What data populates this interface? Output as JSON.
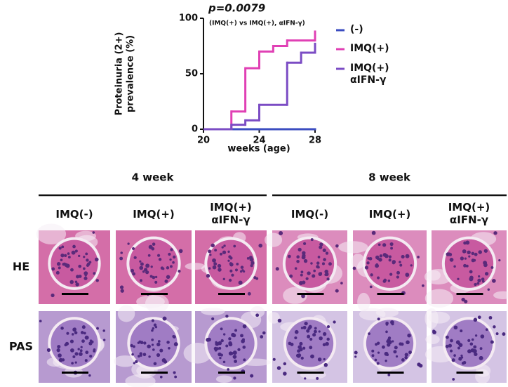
{
  "chart_data": {
    "type": "step",
    "title": "p=0.0079",
    "subtitle": "(IMQ(+) vs IMQ(+), αIFN-γ)",
    "xlabel": "weeks (age)",
    "ylabel": "Proteinuria (2+)\nprevalence (%)",
    "xlim": [
      20,
      28
    ],
    "xticks": [
      20,
      24,
      28
    ],
    "ylim": [
      0,
      100
    ],
    "yticks": [
      0,
      50,
      100
    ],
    "series": [
      {
        "name": "(-)",
        "color": "#3b4cc0",
        "x": [
          20,
          28
        ],
        "values": [
          0,
          0
        ]
      },
      {
        "name": "IMQ(+)",
        "color": "#e040b4",
        "x": [
          20,
          22,
          23,
          24,
          25,
          26,
          28
        ],
        "values": [
          0,
          16,
          55,
          70,
          75,
          80,
          88
        ]
      },
      {
        "name": "IMQ(+)\nαIFN-γ",
        "color": "#7b4cc4",
        "x": [
          20,
          22,
          23,
          24,
          26,
          27,
          28
        ],
        "values": [
          0,
          4,
          8,
          22,
          60,
          69,
          77
        ]
      }
    ]
  },
  "panel": {
    "groups": [
      "4 week",
      "8 week"
    ],
    "columns": [
      "IMQ(-)",
      "IMQ(+)",
      "IMQ(+)\nαIFN-γ",
      "IMQ(-)",
      "IMQ(+)",
      "IMQ(+)\nαIFN-γ"
    ],
    "rows": [
      "HE",
      "PAS"
    ]
  }
}
